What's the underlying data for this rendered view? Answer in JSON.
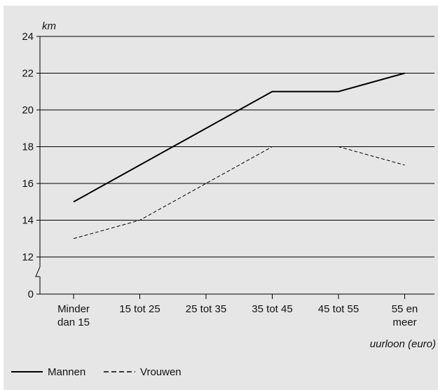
{
  "chart_data": {
    "type": "line",
    "ylabel": "km",
    "xlabel": "uurloon (euro)",
    "categories": [
      [
        "Minder",
        "dan 15"
      ],
      [
        "15 tot 25"
      ],
      [
        "25 tot 35"
      ],
      [
        "35 tot 45"
      ],
      [
        "45 tot 55"
      ],
      [
        "55 en",
        "meer"
      ]
    ],
    "y_ticks": [
      "0",
      "12",
      "14",
      "16",
      "18",
      "20",
      "22",
      "24"
    ],
    "ylim": [
      0,
      24
    ],
    "axis_break": "between 0 and 12",
    "grid": "horizontal",
    "legend_position": "bottom-left",
    "series": [
      {
        "name": "Mannen",
        "values": [
          15,
          17,
          19,
          21,
          21,
          22
        ],
        "line_style": "solid",
        "color": "#000000"
      },
      {
        "name": "Vrouwen",
        "values": [
          13,
          14,
          16,
          18,
          18,
          17
        ],
        "line_style": "dashed",
        "color": "#000000"
      }
    ]
  }
}
